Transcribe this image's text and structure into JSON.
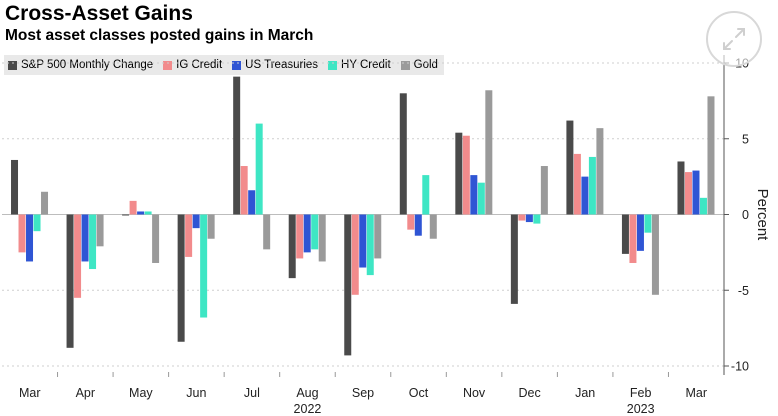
{
  "header": {
    "title": "Cross-Asset Gains",
    "subtitle": "Most asset classes posted gains in March"
  },
  "legend": {
    "items": [
      {
        "label": "S&P 500 Monthly Change",
        "color": "#4a4a4a"
      },
      {
        "label": "IG Credit",
        "color": "#f28b8c"
      },
      {
        "label": "US Treasuries",
        "color": "#2f55d4"
      },
      {
        "label": "HY Credit",
        "color": "#3ee6c4"
      },
      {
        "label": "Gold",
        "color": "#9a9a9a"
      }
    ]
  },
  "colors": {
    "background": "#ffffff",
    "axis": "#555555",
    "gridline": "#cfcfcf"
  },
  "chart_data": {
    "type": "bar",
    "title": "Cross-Asset Gains",
    "subtitle": "Most asset classes posted gains in March",
    "xlabel": "",
    "ylabel": "Percent",
    "ylim": [
      -10.5,
      10.5
    ],
    "yticks": [
      10,
      5,
      0,
      -5,
      -10
    ],
    "ytick_labels": [
      "10",
      "5",
      "0",
      "-5",
      "-10"
    ],
    "categories": [
      "Mar",
      "Apr",
      "May",
      "Jun",
      "Jul",
      "Aug",
      "Sep",
      "Oct",
      "Nov",
      "Dec",
      "Jan",
      "Feb",
      "Mar"
    ],
    "year_labels": [
      {
        "label": "2022",
        "category_index": 5.5
      },
      {
        "label": "2023",
        "category_index": 11.5
      }
    ],
    "series": [
      {
        "name": "S&P 500 Monthly Change",
        "color": "#4a4a4a",
        "values": [
          3.6,
          -8.8,
          0.0,
          -8.4,
          9.1,
          -4.2,
          -9.3,
          8.0,
          5.4,
          -5.9,
          6.2,
          -2.6,
          3.5
        ]
      },
      {
        "name": "IG Credit",
        "color": "#f28b8c",
        "values": [
          -2.5,
          -5.5,
          0.9,
          -2.8,
          3.2,
          -2.9,
          -5.3,
          -1.0,
          5.2,
          -0.4,
          4.0,
          -3.2,
          2.8
        ]
      },
      {
        "name": "US Treasuries",
        "color": "#2f55d4",
        "values": [
          -3.1,
          -3.1,
          0.2,
          -0.9,
          1.6,
          -2.5,
          -3.5,
          -1.4,
          2.6,
          -0.5,
          2.5,
          -2.4,
          2.9
        ]
      },
      {
        "name": "HY Credit",
        "color": "#3ee6c4",
        "values": [
          -1.1,
          -3.6,
          0.2,
          -6.8,
          6.0,
          -2.3,
          -4.0,
          2.6,
          2.1,
          -0.6,
          3.8,
          -1.2,
          1.1
        ]
      },
      {
        "name": "Gold",
        "color": "#9a9a9a",
        "values": [
          1.5,
          -2.1,
          -3.2,
          -1.6,
          -2.3,
          -3.1,
          -2.9,
          -1.6,
          8.2,
          3.2,
          5.7,
          -5.3,
          7.8
        ]
      }
    ]
  }
}
